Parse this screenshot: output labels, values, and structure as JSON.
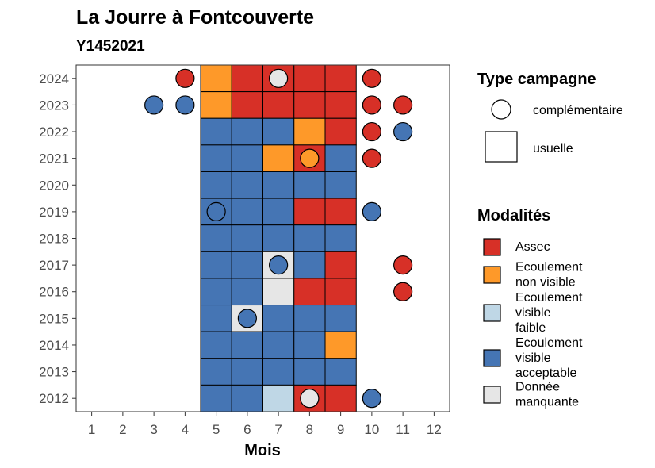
{
  "chart_data": {
    "type": "heatmap",
    "title": "La Jourre à Fontcouverte",
    "subtitle": "Y1452021",
    "xlabel": "Mois",
    "ylabel": "",
    "x_ticks": [
      "1",
      "2",
      "3",
      "4",
      "5",
      "6",
      "7",
      "8",
      "9",
      "10",
      "11",
      "12"
    ],
    "y_ticks": [
      "2012",
      "2013",
      "2014",
      "2015",
      "2016",
      "2017",
      "2018",
      "2019",
      "2020",
      "2021",
      "2022",
      "2023",
      "2024"
    ],
    "xlim": [
      0.5,
      12.5
    ],
    "ylim": [
      2011.5,
      2024.5
    ],
    "grid": false,
    "colors": {
      "Assec": "#d73027",
      "Ecoulement non visible": "#fe9929",
      "Ecoulement visible faible": "#bfd7e6",
      "Ecoulement visible acceptable": "#4575b4",
      "Donnée manquante": "#e6e6e6"
    },
    "usuelle": [
      {
        "year": 2024,
        "months": [
          "Ecoulement non visible",
          "Assec",
          "Assec",
          "Assec",
          "Assec"
        ]
      },
      {
        "year": 2023,
        "months": [
          "Ecoulement non visible",
          "Assec",
          "Assec",
          "Assec",
          "Assec"
        ]
      },
      {
        "year": 2022,
        "months": [
          "Ecoulement visible acceptable",
          "Ecoulement visible acceptable",
          "Ecoulement visible acceptable",
          "Ecoulement non visible",
          "Assec"
        ]
      },
      {
        "year": 2021,
        "months": [
          "Ecoulement visible acceptable",
          "Ecoulement visible acceptable",
          "Ecoulement non visible",
          "Assec",
          "Ecoulement visible acceptable"
        ]
      },
      {
        "year": 2020,
        "months": [
          "Ecoulement visible acceptable",
          "Ecoulement visible acceptable",
          "Ecoulement visible acceptable",
          "Ecoulement visible acceptable",
          "Ecoulement visible acceptable"
        ]
      },
      {
        "year": 2019,
        "months": [
          "Ecoulement visible acceptable",
          "Ecoulement visible acceptable",
          "Ecoulement visible acceptable",
          "Assec",
          "Assec"
        ]
      },
      {
        "year": 2018,
        "months": [
          "Ecoulement visible acceptable",
          "Ecoulement visible acceptable",
          "Ecoulement visible acceptable",
          "Ecoulement visible acceptable",
          "Ecoulement visible acceptable"
        ]
      },
      {
        "year": 2017,
        "months": [
          "Ecoulement visible acceptable",
          "Ecoulement visible acceptable",
          "Donnée manquante",
          "Ecoulement visible acceptable",
          "Assec"
        ]
      },
      {
        "year": 2016,
        "months": [
          "Ecoulement visible acceptable",
          "Ecoulement visible acceptable",
          "Donnée manquante",
          "Assec",
          "Assec"
        ]
      },
      {
        "year": 2015,
        "months": [
          "Ecoulement visible acceptable",
          "Donnée manquante",
          "Ecoulement visible acceptable",
          "Ecoulement visible acceptable",
          "Ecoulement visible acceptable"
        ]
      },
      {
        "year": 2014,
        "months": [
          "Ecoulement visible acceptable",
          "Ecoulement visible acceptable",
          "Ecoulement visible acceptable",
          "Ecoulement visible acceptable",
          "Ecoulement non visible"
        ]
      },
      {
        "year": 2013,
        "months": [
          "Ecoulement visible acceptable",
          "Ecoulement visible acceptable",
          "Ecoulement visible acceptable",
          "Ecoulement visible acceptable",
          "Ecoulement visible acceptable"
        ]
      },
      {
        "year": 2012,
        "months": [
          "Ecoulement visible acceptable",
          "Ecoulement visible acceptable",
          "Ecoulement visible faible",
          "Assec",
          "Assec"
        ]
      }
    ],
    "usuelle_first_month": 5,
    "complementaire": [
      {
        "year": 2024,
        "month": 4,
        "value": "Assec"
      },
      {
        "year": 2024,
        "month": 7,
        "value": "Donnée manquante"
      },
      {
        "year": 2024,
        "month": 10,
        "value": "Assec"
      },
      {
        "year": 2023,
        "month": 3,
        "value": "Ecoulement visible acceptable"
      },
      {
        "year": 2023,
        "month": 4,
        "value": "Ecoulement visible acceptable"
      },
      {
        "year": 2023,
        "month": 10,
        "value": "Assec"
      },
      {
        "year": 2023,
        "month": 11,
        "value": "Assec"
      },
      {
        "year": 2022,
        "month": 10,
        "value": "Assec"
      },
      {
        "year": 2022,
        "month": 11,
        "value": "Ecoulement visible acceptable"
      },
      {
        "year": 2021,
        "month": 8,
        "value": "Ecoulement non visible"
      },
      {
        "year": 2021,
        "month": 10,
        "value": "Assec"
      },
      {
        "year": 2019,
        "month": 5,
        "value": "Ecoulement visible acceptable"
      },
      {
        "year": 2019,
        "month": 10,
        "value": "Ecoulement visible acceptable"
      },
      {
        "year": 2017,
        "month": 7,
        "value": "Ecoulement visible acceptable"
      },
      {
        "year": 2017,
        "month": 11,
        "value": "Assec"
      },
      {
        "year": 2016,
        "month": 11,
        "value": "Assec"
      },
      {
        "year": 2015,
        "month": 6,
        "value": "Ecoulement visible acceptable"
      },
      {
        "year": 2012,
        "month": 8,
        "value": "Donnée manquante"
      },
      {
        "year": 2012,
        "month": 10,
        "value": "Ecoulement visible acceptable"
      }
    ],
    "legend": {
      "placement": "right",
      "type_title": "Type campagne",
      "type_items": [
        "complémentaire",
        "usuelle"
      ],
      "mod_title": "Modalités",
      "mod_items": [
        {
          "key": "Assec",
          "lines": [
            "Assec"
          ]
        },
        {
          "key": "Ecoulement non visible",
          "lines": [
            "Ecoulement",
            "non visible"
          ]
        },
        {
          "key": "Ecoulement visible faible",
          "lines": [
            "Ecoulement",
            "visible",
            "faible"
          ]
        },
        {
          "key": "Ecoulement visible acceptable",
          "lines": [
            "Ecoulement",
            "visible",
            "acceptable"
          ]
        },
        {
          "key": "Donnée manquante",
          "lines": [
            "Donnée",
            "manquante"
          ]
        }
      ]
    }
  }
}
